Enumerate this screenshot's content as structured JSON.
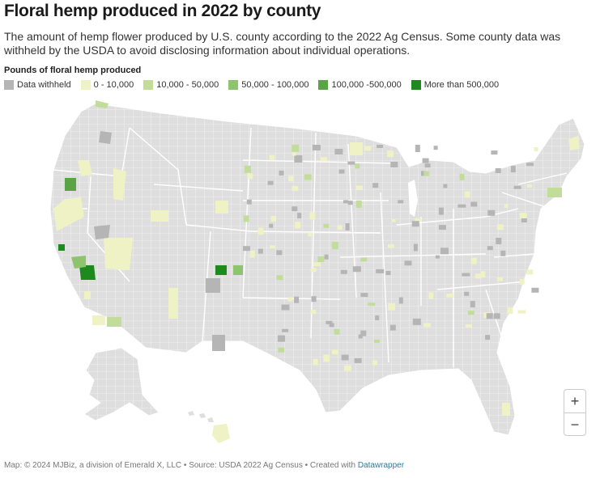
{
  "title": "Floral hemp produced in 2022 by county",
  "subtitle": "The amount of hemp flower produced by U.S. county according to the 2022 Ag Census. Some county data was withheld by the USDA to avoid disclosing information about individual operations.",
  "legend": {
    "title": "Pounds of floral hemp produced",
    "items": [
      {
        "label": "Data withheld",
        "color": "#b5b5b5"
      },
      {
        "label": "0 - 10,000",
        "color": "#eef2c4"
      },
      {
        "label": "10,000 - 50,000",
        "color": "#c2dd9a"
      },
      {
        "label": "50,000 - 100,000",
        "color": "#8ec46e"
      },
      {
        "label": "100,000 -500,000",
        "color": "#5aa447"
      },
      {
        "label": "More than 500,000",
        "color": "#1e8a1e"
      }
    ]
  },
  "colors": {
    "county_default": "#dedede",
    "border": "#ffffff"
  },
  "zoom": {
    "in_label": "+",
    "out_label": "−"
  },
  "footer": {
    "text": "Map: © 2024 MJBiz, a division of Emerald X, LLC • Source: USDA 2022 Ag Census • Created with ",
    "link": "Datawrapper"
  }
}
